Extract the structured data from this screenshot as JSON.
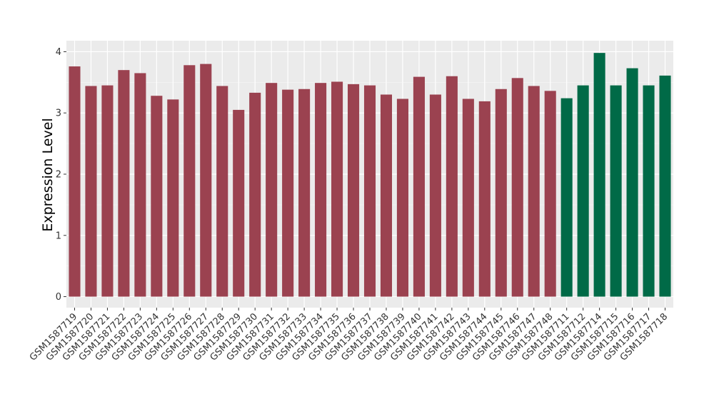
{
  "chart_data": {
    "type": "bar",
    "title": "",
    "xlabel": "",
    "ylabel": "Expression Level",
    "ylim": [
      -0.18,
      4.18
    ],
    "y_ticks": [
      0,
      1,
      2,
      3,
      4
    ],
    "grid": true,
    "background": "#ebebeb",
    "categories": [
      "GSM1587719",
      "GSM1587720",
      "GSM1587721",
      "GSM1587722",
      "GSM1587723",
      "GSM1587724",
      "GSM1587725",
      "GSM1587726",
      "GSM1587727",
      "GSM1587728",
      "GSM1587729",
      "GSM1587730",
      "GSM1587731",
      "GSM1587732",
      "GSM1587733",
      "GSM1587734",
      "GSM1587735",
      "GSM1587736",
      "GSM1587737",
      "GSM1587738",
      "GSM1587739",
      "GSM1587740",
      "GSM1587741",
      "GSM1587742",
      "GSM1587743",
      "GSM1587744",
      "GSM1587745",
      "GSM1587746",
      "GSM1587747",
      "GSM1587748",
      "GSM1587711",
      "GSM1587712",
      "GSM1587714",
      "GSM1587715",
      "GSM1587716",
      "GSM1587717",
      "GSM1587718"
    ],
    "values": [
      3.76,
      3.44,
      3.45,
      3.7,
      3.65,
      3.28,
      3.22,
      3.78,
      3.8,
      3.44,
      3.05,
      3.33,
      3.49,
      3.38,
      3.39,
      3.49,
      3.51,
      3.47,
      3.45,
      3.3,
      3.23,
      3.59,
      3.3,
      3.6,
      3.23,
      3.19,
      3.39,
      3.57,
      3.44,
      3.36,
      3.24,
      3.45,
      3.98,
      3.45,
      3.73,
      3.45,
      3.61
    ],
    "bar_colors": [
      "#9b4250",
      "#9b4250",
      "#9b4250",
      "#9b4250",
      "#9b4250",
      "#9b4250",
      "#9b4250",
      "#9b4250",
      "#9b4250",
      "#9b4250",
      "#9b4250",
      "#9b4250",
      "#9b4250",
      "#9b4250",
      "#9b4250",
      "#9b4250",
      "#9b4250",
      "#9b4250",
      "#9b4250",
      "#9b4250",
      "#9b4250",
      "#9b4250",
      "#9b4250",
      "#9b4250",
      "#9b4250",
      "#9b4250",
      "#9b4250",
      "#9b4250",
      "#9b4250",
      "#9b4250",
      "#006a47",
      "#006a47",
      "#006a47",
      "#006a47",
      "#006a47",
      "#006a47",
      "#006a47"
    ]
  }
}
